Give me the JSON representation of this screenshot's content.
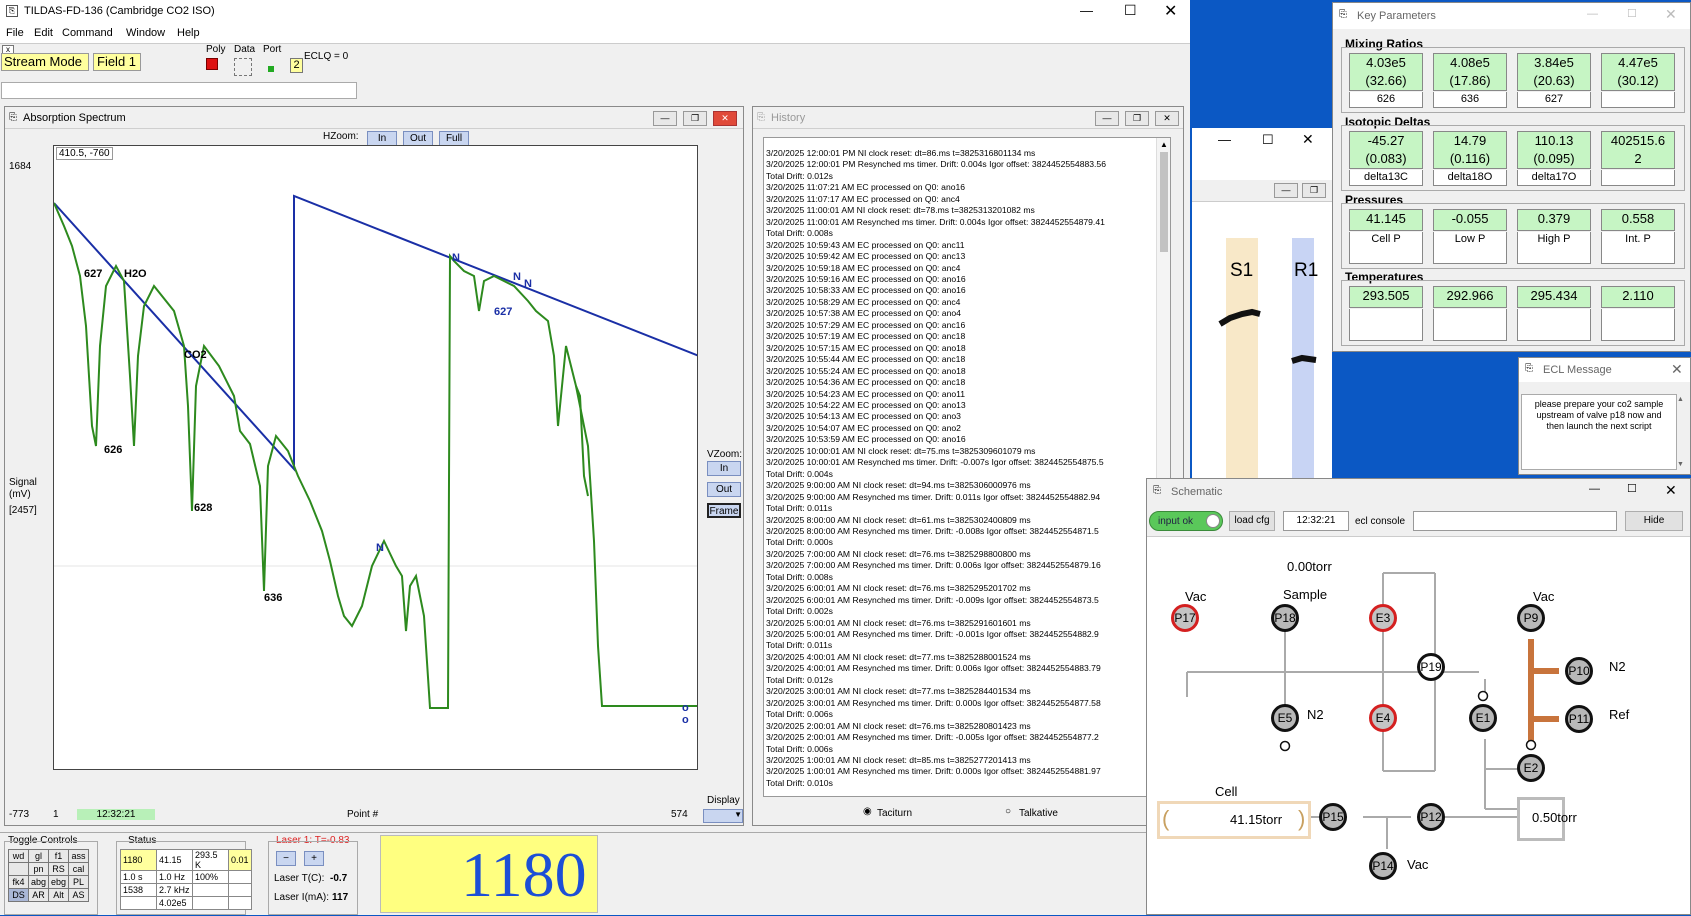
{
  "main_window": {
    "title": "TILDAS-FD-136 (Cambridge CO2 ISO)",
    "menu": [
      "File",
      "Edit",
      "Command",
      "Window",
      "Help"
    ],
    "mode": "Stream Mode",
    "field": "Field 1",
    "poly_label": "Poly",
    "data_label": "Data",
    "port_label": "Port",
    "port_value": "2",
    "eclq": "ECLQ = 0",
    "close_small": "x"
  },
  "spectrum": {
    "title": "Absorption Spectrum",
    "hzoom_label": "HZoom:",
    "hzoom_buttons": [
      "In",
      "Out",
      "Full"
    ],
    "vzoom_label": "VZoom:",
    "vzoom_buttons": [
      "In",
      "Out",
      "Frame"
    ],
    "cursor_readout": "410.5, -760",
    "y_top": "1684",
    "y_bottom": "-773",
    "signal_label": "Signal",
    "signal_unit": "(mV)",
    "signal_value": "[2457]",
    "x_start": "1",
    "x_time": "12:32:21",
    "x_label": "Point #",
    "x_end": "574",
    "display_label": "Display",
    "peak_labels": [
      "627",
      "H2O",
      "CO2",
      "626",
      "628",
      "636",
      "N",
      "N",
      "627",
      "N",
      "N",
      "o o"
    ]
  },
  "history": {
    "title": "History",
    "lines": [
      "3/20/2025 12:00:01 PM NI clock reset: dt=86.ms  t=3825316801134 ms",
      "3/20/2025 12:00:01 PM Resynched ms timer.  Drift: 0.004s   Igor offset:  3824452554883.56",
      "Total Drift: 0.012s",
      "3/20/2025 11:07:21 AM EC processed on Q0: ano16",
      "3/20/2025 11:07:17 AM EC processed on Q0: anc4",
      "3/20/2025 11:00:01 AM NI clock reset: dt=78.ms  t=3825313201082 ms",
      "3/20/2025 11:00:01 AM Resynched ms timer.  Drift: 0.004s   Igor offset:  3824452554879.41",
      "Total Drift: 0.008s",
      "3/20/2025 10:59:43 AM EC processed on Q0: anc11",
      "3/20/2025 10:59:42 AM EC processed on Q0: anc13",
      "3/20/2025 10:59:18 AM EC processed on Q0: anc4",
      "3/20/2025 10:59:16 AM EC processed on Q0: ano16",
      "3/20/2025 10:58:33 AM EC processed on Q0: ano16",
      "3/20/2025 10:58:29 AM EC processed on Q0: anc4",
      "3/20/2025 10:57:38 AM EC processed on Q0: ano4",
      "3/20/2025 10:57:29 AM EC processed on Q0: anc16",
      "3/20/2025 10:57:19 AM EC processed on Q0: anc18",
      "3/20/2025 10:57:15 AM EC processed on Q0: ano18",
      "3/20/2025 10:55:44 AM EC processed on Q0: anc18",
      "3/20/2025 10:55:24 AM EC processed on Q0: ano18",
      "3/20/2025 10:54:36 AM EC processed on Q0: anc18",
      "3/20/2025 10:54:23 AM EC processed on Q0: ano11",
      "3/20/2025 10:54:22 AM EC processed on Q0: ano13",
      "3/20/2025 10:54:13 AM EC processed on Q0: ano3",
      "3/20/2025 10:54:07 AM EC processed on Q0: ano2",
      "3/20/2025 10:53:59 AM EC processed on Q0: ano16",
      "3/20/2025 10:00:01 AM NI clock reset: dt=75.ms  t=3825309601079 ms",
      "3/20/2025 10:00:01 AM Resynched ms timer.  Drift: -0.007s   Igor offset:  3824452554875.5",
      "Total Drift: 0.004s",
      "3/20/2025 9:00:00 AM NI clock reset: dt=94.ms  t=3825306000976 ms",
      "3/20/2025 9:00:00 AM Resynched ms timer.  Drift: 0.011s   Igor offset:  3824452554882.94",
      "Total Drift: 0.011s",
      "3/20/2025 8:00:00 AM NI clock reset: dt=61.ms  t=3825302400809 ms",
      "3/20/2025 8:00:00 AM Resynched ms timer.  Drift: -0.008s   Igor offset:  3824452554871.5",
      "Total Drift: 0.000s",
      "3/20/2025 7:00:00 AM NI clock reset: dt=76.ms  t=3825298800800 ms",
      "3/20/2025 7:00:00 AM Resynched ms timer.  Drift: 0.006s   Igor offset:  3824452554879.16",
      "Total Drift: 0.008s",
      "3/20/2025 6:00:01 AM NI clock reset: dt=76.ms  t=3825295201702 ms",
      "3/20/2025 6:00:01 AM Resynched ms timer.  Drift: -0.009s   Igor offset:  3824452554873.5",
      "Total Drift: 0.002s",
      "3/20/2025 5:00:01 AM NI clock reset: dt=76.ms  t=3825291601601 ms",
      "3/20/2025 5:00:01 AM Resynched ms timer.  Drift: -0.001s   Igor offset:  3824452554882.9",
      "Total Drift: 0.011s",
      "3/20/2025 4:00:01 AM NI clock reset: dt=77.ms  t=3825288001524 ms",
      "3/20/2025 4:00:01 AM Resynched ms timer.  Drift: 0.006s   Igor offset:  3824452554883.79",
      "Total Drift: 0.012s",
      "3/20/2025 3:00:01 AM NI clock reset: dt=77.ms  t=3825284401534 ms",
      "3/20/2025 3:00:01 AM Resynched ms timer.  Drift: 0.000s   Igor offset:  3824452554877.58",
      "Total Drift: 0.006s",
      "3/20/2025 2:00:01 AM NI clock reset: dt=76.ms  t=3825280801423 ms",
      "3/20/2025 2:00:01 AM Resynched ms timer.  Drift: -0.005s   Igor offset:  3824452554877.2",
      "Total Drift: 0.006s",
      "3/20/2025 1:00:01 AM NI clock reset: dt=85.ms  t=3825277201413 ms",
      "3/20/2025 1:00:01 AM Resynched ms timer.  Drift: 0.000s   Igor offset:  3824452554881.97",
      "Total Drift: 0.010s"
    ],
    "radio_taciturn": "Taciturn",
    "radio_talkative": "Talkative"
  },
  "key_params": {
    "title": "Key Parameters",
    "mixing_title": "Mixing Ratios",
    "mixing": [
      {
        "v": "4.03e5",
        "e": "(32.66)",
        "l": "626"
      },
      {
        "v": "4.08e5",
        "e": "(17.86)",
        "l": "636"
      },
      {
        "v": "3.84e5",
        "e": "(20.63)",
        "l": "627"
      },
      {
        "v": "4.47e5",
        "e": "(30.12)",
        "l": ""
      }
    ],
    "iso_title": "Isotopic Deltas",
    "iso": [
      {
        "v": "-45.27",
        "e": "(0.083)",
        "l": "delta13C"
      },
      {
        "v": "14.79",
        "e": "(0.116)",
        "l": "delta18O"
      },
      {
        "v": "110.13",
        "e": "(0.095)",
        "l": "delta17O"
      },
      {
        "v": "402515.6",
        "e": "2",
        "l": ""
      }
    ],
    "press_title": "Pressures",
    "press": [
      {
        "v": "41.145",
        "l": "Cell P"
      },
      {
        "v": "-0.055",
        "l": "Low P"
      },
      {
        "v": "0.379",
        "l": "High P"
      },
      {
        "v": "0.558",
        "l": "Int. P"
      }
    ],
    "temp_title": "Temperatures",
    "temp": [
      {
        "v": "293.505",
        "l": ""
      },
      {
        "v": "292.966",
        "l": ""
      },
      {
        "v": "295.434",
        "l": ""
      },
      {
        "v": "2.110",
        "l": ""
      }
    ]
  },
  "ecl_message": {
    "title": "ECL Message",
    "text": "please prepare your co2 sample upstream of valve p18 now and then launch the next script"
  },
  "strip": {
    "s1": "S1",
    "r1": "R1"
  },
  "schematic": {
    "title": "Schematic",
    "input_ok": "input ok",
    "load_cfg": "load cfg",
    "time": "12:32:21",
    "ecl_console": "ecl console",
    "hide": "Hide",
    "p_top": "0.00torr",
    "cell_p": "41.15torr",
    "right_p": "0.50torr",
    "labels": {
      "vac1": "Vac",
      "sample": "Sample",
      "vac2": "Vac",
      "n2a": "N2",
      "n2b": "N2",
      "ref": "Ref",
      "cell": "Cell",
      "vac3": "Vac"
    },
    "nodes": {
      "p17": "P17",
      "p18": "P18",
      "e3": "E3",
      "p9": "P9",
      "p19": "P19",
      "p10": "P10",
      "e5": "E5",
      "e4": "E4",
      "e1": "E1",
      "p11": "P11",
      "e2": "E2",
      "p15": "P15",
      "p12": "P12",
      "p14": "P14"
    }
  },
  "bottom": {
    "toggle_title": "Toggle Controls",
    "toggles": [
      [
        "wd",
        "gl",
        "f1",
        "ass"
      ],
      [
        "",
        "pn",
        "RS",
        "cal"
      ],
      [
        "fk4",
        "abg",
        "ebg",
        "PL"
      ],
      [
        "DS",
        "AR",
        "Alt",
        "AS"
      ]
    ],
    "status_title": "Status",
    "status": [
      [
        "1180",
        "41.15",
        "293.5 K",
        "0.01"
      ],
      [
        "1.0 s",
        "1.0 Hz",
        "100%",
        ""
      ],
      [
        "1538",
        "2.7 kHz",
        "",
        ""
      ],
      [
        "",
        "4.02e5",
        "",
        ""
      ]
    ],
    "laser_title": "Laser 1: T=-0.83",
    "laser_minus": "−",
    "laser_plus": "+",
    "laser_t_label": "Laser T(C):",
    "laser_t": "-0.7",
    "laser_i_label": "Laser I(mA):",
    "laser_i": "117",
    "big_number": "1180"
  },
  "colors": {
    "trace": "#2d8a1e",
    "baseline": "#1a2fa6",
    "value_bg": "#c6f5c4",
    "big_bg": "#ffff80",
    "desktop": "#0b58c4"
  }
}
